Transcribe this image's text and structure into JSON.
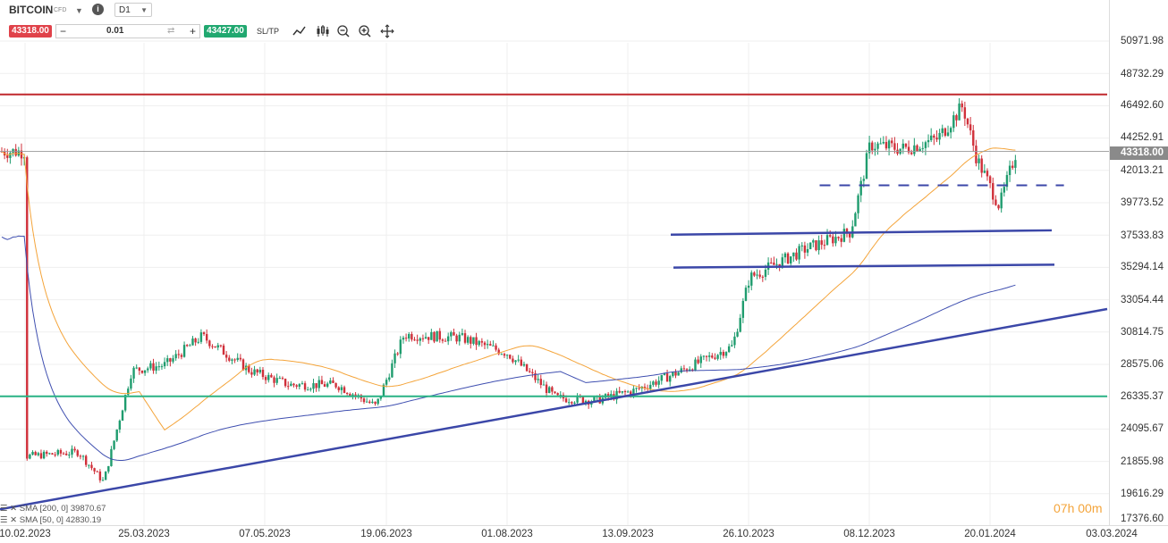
{
  "toolbar": {
    "symbol": "BITCOIN",
    "symbol_type": "CFD",
    "info": "i",
    "timeframe": "D1",
    "sell_price": "43318.00",
    "buy_price": "43427.00",
    "quantity": "0.01",
    "minus": "−",
    "plus": "+",
    "sltp": "SL/TP"
  },
  "price_axis": {
    "labels": [
      "50971.98",
      "48732.29",
      "46492.60",
      "44252.91",
      "42013.21",
      "39773.52",
      "37533.83",
      "35294.14",
      "33054.44",
      "30814.75",
      "28575.06",
      "26335.37",
      "24095.67",
      "21855.98",
      "19616.29",
      "17376.60"
    ],
    "current_price": "43318.00"
  },
  "time_axis": {
    "labels": [
      "10.02.2023",
      "25.03.2023",
      "07.05.2023",
      "19.06.2023",
      "01.08.2023",
      "13.09.2023",
      "26.10.2023",
      "08.12.2023",
      "20.01.2024",
      "03.03.2024"
    ]
  },
  "legend": {
    "sma200": "SMA [200, 0]  39870.67",
    "sma50": "SMA [50, 0]  42830.19"
  },
  "countdown": {
    "hours": "07",
    "h": "h",
    "minutes": "00",
    "m": "m"
  },
  "colors": {
    "bull": "#1f9c6e",
    "bear": "#d0303a",
    "sma50": "#f4a43a",
    "sma200": "#3f4fb0",
    "trend": "#3b47a8",
    "resistance": "#c0282d",
    "support": "#2ab386"
  },
  "chart_data": {
    "type": "candlestick",
    "symbol": "BITCOIN",
    "timeframe": "D1",
    "ylim": [
      17376.6,
      50971.98
    ],
    "x_range": [
      "10.02.2023",
      "03.03.2024"
    ],
    "closes_approx": [
      {
        "date": "10.02.2023",
        "close": 22000
      },
      {
        "date": "01.03.2023",
        "close": 22300
      },
      {
        "date": "10.03.2023",
        "close": 20200
      },
      {
        "date": "20.03.2023",
        "close": 28000
      },
      {
        "date": "01.04.2023",
        "close": 28400
      },
      {
        "date": "14.04.2023",
        "close": 30400
      },
      {
        "date": "01.05.2023",
        "close": 28000
      },
      {
        "date": "15.05.2023",
        "close": 27000
      },
      {
        "date": "01.06.2023",
        "close": 27000
      },
      {
        "date": "15.06.2023",
        "close": 25500
      },
      {
        "date": "25.06.2023",
        "close": 30500
      },
      {
        "date": "15.07.2023",
        "close": 30300
      },
      {
        "date": "01.08.2023",
        "close": 29200
      },
      {
        "date": "18.08.2023",
        "close": 26100
      },
      {
        "date": "01.09.2023",
        "close": 25900
      },
      {
        "date": "15.09.2023",
        "close": 26600
      },
      {
        "date": "01.10.2023",
        "close": 27900
      },
      {
        "date": "20.10.2023",
        "close": 29700
      },
      {
        "date": "26.10.2023",
        "close": 34500
      },
      {
        "date": "15.11.2023",
        "close": 36500
      },
      {
        "date": "01.12.2023",
        "close": 37700
      },
      {
        "date": "08.12.2023",
        "close": 43800
      },
      {
        "date": "20.12.2023",
        "close": 43500
      },
      {
        "date": "01.01.2024",
        "close": 44200
      },
      {
        "date": "10.01.2024",
        "close": 46500
      },
      {
        "date": "15.01.2024",
        "close": 42800
      },
      {
        "date": "23.01.2024",
        "close": 39500
      },
      {
        "date": "29.01.2024",
        "close": 43318
      }
    ],
    "series": [
      {
        "name": "SMA [200, 0]",
        "last": 39870.67
      },
      {
        "name": "SMA [50, 0]",
        "last": 42830.19
      }
    ],
    "horizontal_lines": [
      {
        "style": "solid",
        "price": 47300
      },
      {
        "style": "solid",
        "price": 26200
      },
      {
        "style": "dashed",
        "price": 40950
      }
    ],
    "trendlines": [
      {
        "from": {
          "date": "10.02.2023",
          "price": 18300
        },
        "to": {
          "date": "03.03.2024",
          "price": 32300
        }
      },
      {
        "from": {
          "date": "26.10.2023",
          "price": 37500
        },
        "to": {
          "date": "01.02.2024",
          "price": 37800
        }
      },
      {
        "from": {
          "date": "26.10.2023",
          "price": 35200
        },
        "to": {
          "date": "01.02.2024",
          "price": 35400
        }
      }
    ]
  }
}
